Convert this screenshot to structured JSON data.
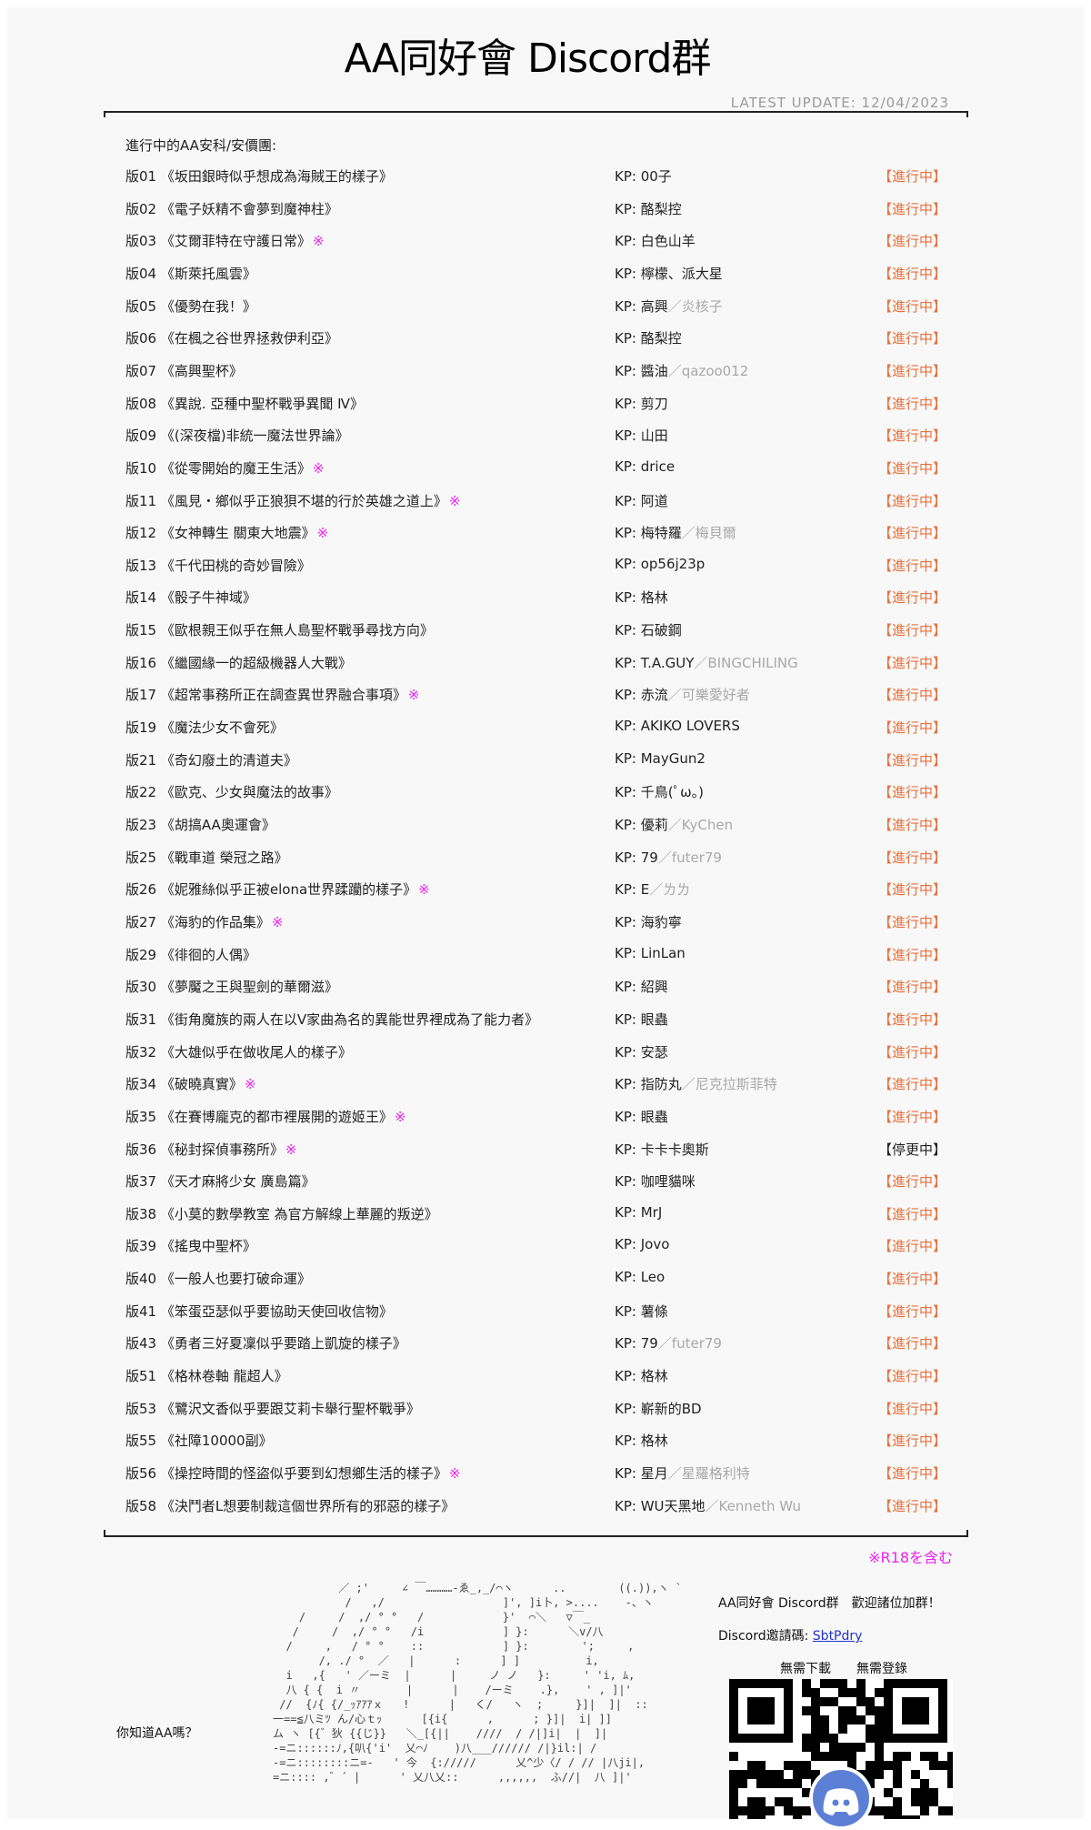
{
  "header": {
    "title": "AA同好會 Discord群",
    "latest_update": "LATEST  UPDATE: 12/04/2023"
  },
  "list_heading": "進行中的AA安科/安價團:",
  "kp_prefix": "KP: ",
  "rows": [
    {
      "code": "版01",
      "title": "《坂田銀時似乎想成為海賊王的樣子》",
      "r18": "",
      "kp": "00子",
      "kp_alt": "",
      "status": "【進行中】"
    },
    {
      "code": "版02",
      "title": "《電子妖精不會夢到魔神柱》",
      "r18": "",
      "kp": "酪梨控",
      "kp_alt": "",
      "status": "【進行中】"
    },
    {
      "code": "版03",
      "title": "《艾爾菲特在守護日常》",
      "r18": "※",
      "kp": "白色山羊",
      "kp_alt": "",
      "status": "【進行中】"
    },
    {
      "code": "版04",
      "title": "《斯萊托風雲》",
      "r18": "",
      "kp": "檸檬、派大星",
      "kp_alt": "",
      "status": "【進行中】"
    },
    {
      "code": "版05",
      "title": "《優勢在我！》",
      "r18": "",
      "kp": "高興",
      "kp_alt": "／炎核子",
      "status": "【進行中】"
    },
    {
      "code": "版06",
      "title": "《在楓之谷世界拯救伊利亞》",
      "r18": "",
      "kp": "酪梨控",
      "kp_alt": "",
      "status": "【進行中】"
    },
    {
      "code": "版07",
      "title": "《高興聖杯》",
      "r18": "",
      "kp": "醬油",
      "kp_alt": "／qazoo012",
      "status": "【進行中】"
    },
    {
      "code": "版08",
      "title": "《異說. 亞種中聖杯戰爭異聞 Ⅳ》",
      "r18": "",
      "kp": "剪刀",
      "kp_alt": "",
      "status": "【進行中】"
    },
    {
      "code": "版09",
      "title": "《(深夜檔)非統一魔法世界論》",
      "r18": "",
      "kp": "山田",
      "kp_alt": "",
      "status": "【進行中】"
    },
    {
      "code": "版10",
      "title": "《從零開始的魔王生活》",
      "r18": "※",
      "kp": "drice",
      "kp_alt": "",
      "status": "【進行中】"
    },
    {
      "code": "版11",
      "title": "《風見・鄉似乎正狼狽不堪的行於英雄之道上》",
      "r18": "※",
      "kp": "阿道",
      "kp_alt": "",
      "status": "【進行中】"
    },
    {
      "code": "版12",
      "title": "《女神轉生 關東大地震》",
      "r18": "※",
      "kp": "梅特羅",
      "kp_alt": "／梅貝爾",
      "status": "【進行中】"
    },
    {
      "code": "版13",
      "title": "《千代田桃的奇妙冒險》",
      "r18": "",
      "kp": "op56j23p",
      "kp_alt": "",
      "status": "【進行中】"
    },
    {
      "code": "版14",
      "title": "《骰子牛神域》",
      "r18": "",
      "kp": "格林",
      "kp_alt": "",
      "status": "【進行中】"
    },
    {
      "code": "版15",
      "title": "《歐根親王似乎在無人島聖杯戰爭尋找方向》",
      "r18": "",
      "kp": "石破鋼",
      "kp_alt": "",
      "status": "【進行中】"
    },
    {
      "code": "版16",
      "title": "《繼國緣一的超級機器人大戰》",
      "r18": "",
      "kp": "T.A.GUY",
      "kp_alt": "／BINGCHILING",
      "status": "【進行中】"
    },
    {
      "code": "版17",
      "title": "《超常事務所正在調查異世界融合事項》",
      "r18": "※",
      "kp": "赤流",
      "kp_alt": "／可樂愛好者",
      "status": "【進行中】"
    },
    {
      "code": "版19",
      "title": "《魔法少女不會死》",
      "r18": "",
      "kp": "AKIKO LOVERS",
      "kp_alt": "",
      "status": "【進行中】"
    },
    {
      "code": "版21",
      "title": "《奇幻廢土的清道夫》",
      "r18": "",
      "kp": "MayGun2",
      "kp_alt": "",
      "status": "【進行中】"
    },
    {
      "code": "版22",
      "title": "《歐克、少女與魔法的故事》",
      "r18": "",
      "kp": "千鳥(ﾟω。)",
      "kp_alt": "",
      "status": "【進行中】"
    },
    {
      "code": "版23",
      "title": "《胡搞AA奧運會》",
      "r18": "",
      "kp": "優莉",
      "kp_alt": "／KyChen",
      "status": "【進行中】"
    },
    {
      "code": "版25",
      "title": "《戰車道 榮冠之路》",
      "r18": "",
      "kp": "79",
      "kp_alt": "／futer79",
      "status": "【進行中】"
    },
    {
      "code": "版26",
      "title": "《妮雅絲似乎正被elona世界蹂躪的樣子》",
      "r18": "※",
      "kp": "E",
      "kp_alt": "／ㄌㄌ",
      "status": "【進行中】"
    },
    {
      "code": "版27",
      "title": "《海豹的作品集》",
      "r18": "※",
      "kp": "海豹寧",
      "kp_alt": "",
      "status": "【進行中】"
    },
    {
      "code": "版29",
      "title": "《徘徊的人偶》",
      "r18": "",
      "kp": "LinLan",
      "kp_alt": "",
      "status": "【進行中】"
    },
    {
      "code": "版30",
      "title": "《夢魘之王與聖劍的華爾滋》",
      "r18": "",
      "kp": "紹興",
      "kp_alt": "",
      "status": "【進行中】"
    },
    {
      "code": "版31",
      "title": "《街角魔族的兩人在以V家曲為名的異能世界裡成為了能力者》",
      "r18": "",
      "kp": "眼蟲",
      "kp_alt": "",
      "status": "【進行中】"
    },
    {
      "code": "版32",
      "title": "《大雄似乎在做收尾人的樣子》",
      "r18": "",
      "kp": "安瑟",
      "kp_alt": "",
      "status": "【進行中】"
    },
    {
      "code": "版34",
      "title": "《破曉真實》",
      "r18": "※",
      "kp": "指防丸",
      "kp_alt": "／尼克拉斯菲特",
      "status": "【進行中】"
    },
    {
      "code": "版35",
      "title": "《在賽博龐克的都市裡展開的遊姬王》",
      "r18": "※",
      "kp": "眼蟲",
      "kp_alt": "",
      "status": "【進行中】"
    },
    {
      "code": "版36",
      "title": "《秘封探偵事務所》",
      "r18": "※",
      "kp": "卡卡卡奧斯",
      "kp_alt": "",
      "status": "【停更中】",
      "paused": true
    },
    {
      "code": "版37",
      "title": "《天才麻將少女 廣島篇》",
      "r18": "",
      "kp": "咖哩貓咪",
      "kp_alt": "",
      "status": "【進行中】"
    },
    {
      "code": "版38",
      "title": "《小莫的數學教室 為官方解線上華麗的叛逆》",
      "r18": "",
      "kp": "MrJ",
      "kp_alt": "",
      "status": "【進行中】"
    },
    {
      "code": "版39",
      "title": "《搖曳中聖杯》",
      "r18": "",
      "kp": "Jovo",
      "kp_alt": "",
      "status": "【進行中】"
    },
    {
      "code": "版40",
      "title": "《一般人也要打破命運》",
      "r18": "",
      "kp": "Leo",
      "kp_alt": "",
      "status": "【進行中】"
    },
    {
      "code": "版41",
      "title": "《笨蛋亞瑟似乎要協助天使回收信物》",
      "r18": "",
      "kp": "薯條",
      "kp_alt": "",
      "status": "【進行中】"
    },
    {
      "code": "版43",
      "title": "《勇者三好夏凜似乎要踏上凱旋的樣子》",
      "r18": "",
      "kp": "79",
      "kp_alt": "／futer79",
      "status": "【進行中】"
    },
    {
      "code": "版51",
      "title": "《格林卷軸 龍超人》",
      "r18": "",
      "kp": "格林",
      "kp_alt": "",
      "status": "【進行中】"
    },
    {
      "code": "版53",
      "title": "《鷺沢文香似乎要跟艾莉卡舉行聖杯戰爭》",
      "r18": "",
      "kp": "嶄新的BD",
      "kp_alt": "",
      "status": "【進行中】"
    },
    {
      "code": "版55",
      "title": "《社障10000副》",
      "r18": "",
      "kp": "格林",
      "kp_alt": "",
      "status": "【進行中】"
    },
    {
      "code": "版56",
      "title": "《操控時間的怪盜似乎要到幻想鄉生活的樣子》",
      "r18": "※",
      "kp": "星月",
      "kp_alt": "／星羅格利特",
      "status": "【進行中】"
    },
    {
      "code": "版58",
      "title": "《決鬥者L想要制裁這個世界所有的邪惡的樣子》",
      "r18": "",
      "kp": "WU天黑地",
      "kp_alt": "／Kenneth Wu",
      "status": "【進行中】"
    }
  ],
  "r18_note": "※R18を含む",
  "footer": {
    "welcome": "AA同好會 Discord群　歡迎諸位加群！",
    "invite_label": "Discord邀請碼: ",
    "invite_code": "SbtPdry",
    "no_download": "無需下載",
    "no_register": "無需登錄",
    "aa_question": "你知道AA嗎？",
    "aa_art": "          ／ ;'     ∠ ￣…………-ゑ_,_/⌒ヽ      ..        ((.)),ヽ `\n           /   ,/                  ]', ]i卜, >....    -、ヽ\n    /     /  ,/ ° °   /            }'  ⌒＼   ▽￣_\n   /     /  ,/ ° °   /i            ] }:      ＼v/八\n  /     ,   / ° °    ::            ] }:        ';     ,\n       /, ./ °  ／   |      :      ] ]          i,\n  i   ,{   ' ／ーミ  |      |     ノ ノ   }:     ' 'i, ﾑ,\n  八 { {  i 〃       |      |    /ーミ    .},    ' , ]|'\n //  {ﾉ{ {/_ｯｱｱｱｘ   !      |   く/   ヽ  ;     }]|  ]|  ::\n一==≦八ミﾂ ん/心ｔｯ      [{i{      ,      ; }]|  i| ]]\nム ヽ [{゛狄 {{じ}}   ＼_[{||    ////  / /|]i|  |  ]|\n-=ニ::::::ﾉ,{叭{'i'  乂⌒ﾉ    )八___////// /|}il:| /\n-=ニ::::::::ニ=-   ' 今  {://///      乂^少〈/ / // |八ji|,\n=ニ:::: ,゛´ |      ' 乂八乂::      ,,,,,,  ふ//|  八 ]|'"
  },
  "colors": {
    "in_progress": "#e8703a",
    "paused": "#222222",
    "r18_mark": "#ee22ee",
    "kp_alt": "#a8a8a8",
    "link": "#2233cc",
    "discord": "#5c7fd6"
  },
  "icons": {
    "qr": "qr-code-icon",
    "discord": "discord-logo-icon"
  }
}
